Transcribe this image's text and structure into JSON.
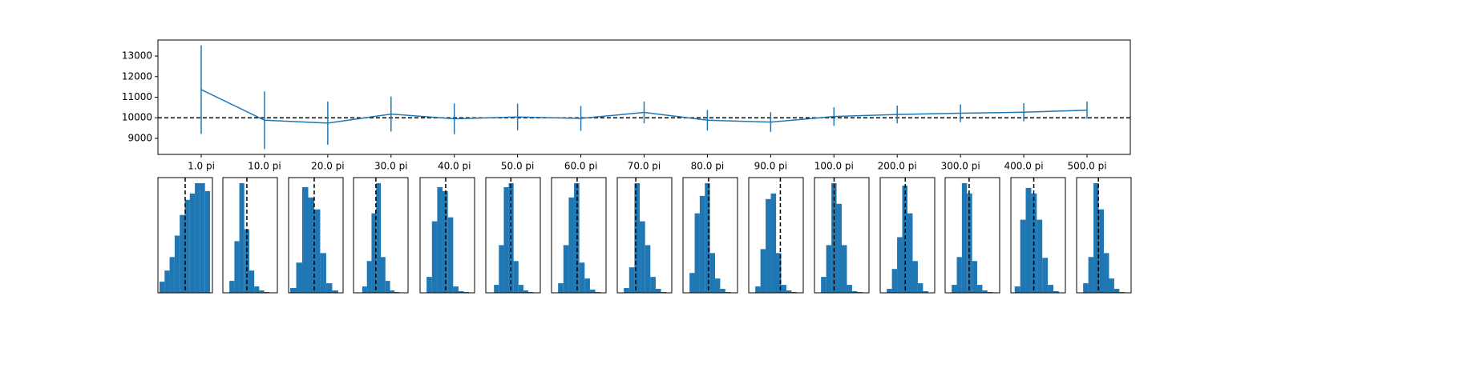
{
  "chart_data": [
    {
      "type": "line",
      "color": "#1f77b4",
      "categories": [
        "1.0 pi",
        "10.0 pi",
        "20.0 pi",
        "30.0 pi",
        "40.0 pi",
        "50.0 pi",
        "60.0 pi",
        "70.0 pi",
        "80.0 pi",
        "90.0 pi",
        "100.0 pi",
        "200.0 pi",
        "300.0 pi",
        "400.0 pi",
        "500.0 pi"
      ],
      "values": [
        11370,
        9880,
        9740,
        10180,
        9950,
        10040,
        9970,
        10260,
        9880,
        9790,
        10060,
        10160,
        10220,
        10270,
        10370
      ],
      "errors": [
        2150,
        1400,
        1050,
        850,
        750,
        650,
        600,
        530,
        500,
        480,
        450,
        430,
        430,
        440,
        420
      ],
      "reference": 10000,
      "ylim": [
        8220,
        13780
      ],
      "yticks": [
        9000,
        10000,
        11000,
        12000,
        13000
      ]
    },
    {
      "type": "histogram",
      "color": "#1f77b4",
      "reference": 10000,
      "ylim": [
        0,
        145
      ],
      "panels": [
        {
          "xlim": [
            4000,
            16000
          ],
          "bins": [
            4350,
            5462,
            6574,
            7686,
            8798,
            9910,
            11022,
            12134,
            13246,
            14358,
            15470
          ],
          "counts": [
            14,
            28,
            45,
            72,
            98,
            117,
            125,
            138,
            138,
            128
          ]
        },
        {
          "xlim": [
            7360,
            13360
          ],
          "bins": [
            8080,
            8628,
            9175,
            9723,
            10270,
            10818,
            11365,
            11913,
            12460
          ],
          "counts": [
            15,
            65,
            138,
            80,
            28,
            8,
            3,
            1
          ]
        },
        {
          "xlim": [
            7180,
            13180
          ],
          "bins": [
            7360,
            8020,
            8680,
            9340,
            10000,
            10660,
            11320,
            11980,
            12640
          ],
          "counts": [
            6,
            38,
            133,
            120,
            105,
            50,
            12,
            3
          ]
        },
        {
          "xlim": [
            7540,
            13540
          ],
          "bins": [
            8500,
            9010,
            9520,
            10030,
            10540,
            11050,
            11560,
            12070,
            12580
          ],
          "counts": [
            8,
            40,
            100,
            138,
            45,
            15,
            3,
            1
          ]
        },
        {
          "xlim": [
            7180,
            13180
          ],
          "bins": [
            7900,
            8485,
            9070,
            9655,
            10240,
            10825,
            11410,
            11995,
            12580
          ],
          "counts": [
            20,
            90,
            133,
            128,
            95,
            8,
            2,
            1
          ]
        },
        {
          "xlim": [
            7240,
            13240
          ],
          "bins": [
            8140,
            8680,
            9220,
            9760,
            10300,
            10840,
            11380,
            11920,
            12460
          ],
          "counts": [
            10,
            60,
            133,
            138,
            40,
            10,
            3,
            1
          ]
        },
        {
          "xlim": [
            7180,
            13180
          ],
          "bins": [
            7900,
            8485,
            9070,
            9655,
            10240,
            10825,
            11410,
            11995,
            12580
          ],
          "counts": [
            12,
            60,
            120,
            138,
            38,
            18,
            4,
            1
          ]
        },
        {
          "xlim": [
            7960,
            13960
          ],
          "bins": [
            8680,
            9265,
            9850,
            10435,
            11020,
            11605,
            12190,
            12775,
            13360
          ],
          "counts": [
            6,
            32,
            138,
            90,
            60,
            20,
            5,
            1
          ]
        },
        {
          "xlim": [
            7180,
            13180
          ],
          "bins": [
            7900,
            8463,
            9025,
            9588,
            10150,
            10713,
            11275,
            11838,
            12400
          ],
          "counts": [
            25,
            100,
            122,
            138,
            50,
            18,
            5,
            1
          ]
        },
        {
          "xlim": [
            6520,
            12520
          ],
          "bins": [
            7240,
            7810,
            8380,
            8950,
            9520,
            10090,
            10660,
            11230,
            11800
          ],
          "counts": [
            8,
            55,
            118,
            125,
            50,
            10,
            3,
            1
          ]
        },
        {
          "xlim": [
            7840,
            13840
          ],
          "bins": [
            8560,
            9130,
            9700,
            10270,
            10840,
            11410,
            11980,
            12550,
            13120
          ],
          "counts": [
            20,
            60,
            138,
            112,
            60,
            10,
            2,
            1
          ]
        },
        {
          "xlim": [
            7240,
            13240
          ],
          "bins": [
            7960,
            8530,
            9100,
            9670,
            10240,
            10810,
            11380,
            11950,
            12520
          ],
          "counts": [
            5,
            30,
            70,
            135,
            100,
            40,
            12,
            2
          ]
        },
        {
          "xlim": [
            7360,
            13360
          ],
          "bins": [
            8080,
            8643,
            9205,
            9768,
            10330,
            10893,
            11455,
            12018,
            12580
          ],
          "counts": [
            10,
            45,
            138,
            125,
            40,
            10,
            3,
            1
          ]
        },
        {
          "xlim": [
            7480,
            13480
          ],
          "bins": [
            7900,
            8508,
            9115,
            9723,
            10330,
            10938,
            11545,
            12153,
            12760
          ],
          "counts": [
            8,
            92,
            132,
            125,
            92,
            44,
            10,
            2
          ]
        },
        {
          "xlim": [
            7600,
            13600
          ],
          "bins": [
            8320,
            8890,
            9460,
            10030,
            10600,
            11170,
            11740,
            12310,
            12880
          ],
          "counts": [
            12,
            45,
            138,
            105,
            50,
            18,
            5,
            1
          ]
        }
      ]
    }
  ]
}
